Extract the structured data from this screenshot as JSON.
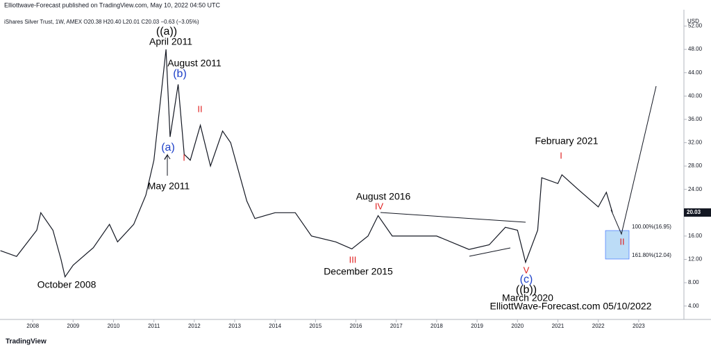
{
  "header": {
    "publisher": "Elliottwave-Forecast published on TradingView.com, May 10, 2022 04:50 UTC",
    "brand": "TradingView"
  },
  "chart_data": {
    "type": "line",
    "title": "iShares Silver Trust, 1W, AMEX  O20.38  H20.40  L20.01  C20.03  −0.63 (−3.05%)",
    "y_axis_label": "USD",
    "x": [
      2007.2,
      2007.6,
      2008.1,
      2008.2,
      2008.5,
      2008.7,
      2008.8,
      2009.0,
      2009.5,
      2009.9,
      2010.1,
      2010.5,
      2010.8,
      2011.0,
      2011.3,
      2011.4,
      2011.6,
      2011.75,
      2011.9,
      2012.15,
      2012.4,
      2012.7,
      2012.9,
      2013.3,
      2013.5,
      2014.0,
      2014.5,
      2014.9,
      2015.5,
      2015.9,
      2016.3,
      2016.55,
      2016.9,
      2017.5,
      2018.0,
      2018.8,
      2019.3,
      2019.7,
      2020.0,
      2020.2,
      2020.5,
      2020.6,
      2021.0,
      2021.1,
      2021.5,
      2022.0,
      2022.2,
      2022.35
    ],
    "series": [
      {
        "color": "#131722",
        "values": [
          13.5,
          12.5,
          17,
          20,
          17,
          12,
          9,
          11,
          14,
          18,
          15,
          18,
          23,
          29,
          48,
          33,
          42,
          30,
          29,
          35,
          28,
          34,
          32,
          22,
          19,
          20,
          20,
          16,
          15,
          13.8,
          16,
          19.5,
          16,
          16,
          16,
          13.7,
          14.5,
          17.5,
          17,
          11.5,
          17,
          26,
          25,
          26.5,
          24,
          21,
          23.5,
          20.03
        ]
      }
    ],
    "last_price": 20.03,
    "xlim": [
      2007.19,
      2024.12
    ],
    "xticks": [
      2008,
      2009,
      2010,
      2011,
      2012,
      2013,
      2014,
      2015,
      2016,
      2017,
      2018,
      2019,
      2020,
      2021,
      2022,
      2023
    ],
    "ylim": [
      1.7,
      54.8
    ],
    "yticks": [
      {
        "value": 4,
        "label": "4.00"
      },
      {
        "value": 8,
        "label": "8.00"
      },
      {
        "value": 12,
        "label": "12.00"
      },
      {
        "value": 16,
        "label": "16.00"
      },
      {
        "value": 20,
        "label": "20.00"
      },
      {
        "value": 24,
        "label": "24.00"
      },
      {
        "value": 28,
        "label": "28.00"
      },
      {
        "value": 32,
        "label": "32.00"
      },
      {
        "value": 36,
        "label": "36.00"
      },
      {
        "value": 40,
        "label": "40.00"
      },
      {
        "value": 44,
        "label": "44.00"
      },
      {
        "value": 48,
        "label": "48.00"
      },
      {
        "value": 52,
        "label": "52.00"
      }
    ],
    "annotations": [
      {
        "text": "((a))",
        "color": "#000000"
      },
      {
        "text": "April 2011",
        "color": "#000000"
      },
      {
        "text": "August 2011",
        "color": "#000000"
      },
      {
        "text": "(b)",
        "color": "#1e40c8"
      },
      {
        "text": "II",
        "color": "#e02020"
      },
      {
        "text": "(a)",
        "color": "#1e40c8"
      },
      {
        "text": "I",
        "color": "#e02020"
      },
      {
        "text": "May 2011",
        "color": "#000000"
      },
      {
        "text": "October 2008",
        "color": "#000000"
      },
      {
        "text": "August 2016",
        "color": "#000000"
      },
      {
        "text": "IV",
        "color": "#e02020"
      },
      {
        "text": "III",
        "color": "#e02020"
      },
      {
        "text": "December  2015",
        "color": "#000000"
      },
      {
        "text": "February 2021",
        "color": "#000000"
      },
      {
        "text": "I",
        "color": "#e02020"
      },
      {
        "text": "V",
        "color": "#e02020"
      },
      {
        "text": "(c)",
        "color": "#1e40c8"
      },
      {
        "text": "((b))",
        "color": "#000000"
      },
      {
        "text": "March 2020",
        "color": "#000000"
      },
      {
        "text": "ElliottWave-Forecast.com 05/10/2022",
        "color": "#000000"
      },
      {
        "text": "II",
        "color": "#e02020"
      },
      {
        "text": "100.00%(16.95)",
        "color": "#131722"
      },
      {
        "text": "161.80%(12.04)",
        "color": "#131722"
      }
    ]
  }
}
